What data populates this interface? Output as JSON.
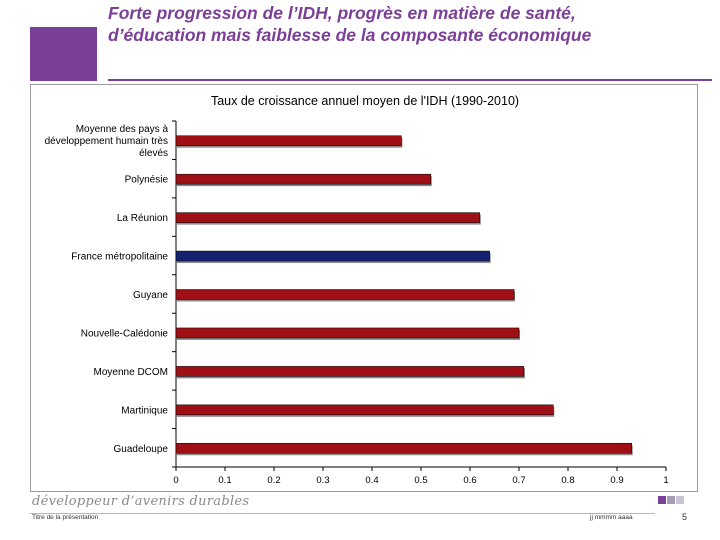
{
  "slide": {
    "title_line1": "Forte progression de l’IDH,  progrès en matière de santé,",
    "title_line2": "d’éducation mais faiblesse de la composante économique",
    "accent_color": "#7b3f98"
  },
  "chart_data": {
    "type": "bar",
    "orientation": "horizontal",
    "title": "Taux de croissance annuel moyen de l'IDH (1990-2010)",
    "categories": [
      "Moyenne des pays à développement humain très élevés",
      "Polynésie",
      "La Réunion",
      "France métropolitaine",
      "Guyane",
      "Nouvelle-Calédonie",
      "Moyenne DCOM",
      "Martinique",
      "Guadeloupe"
    ],
    "values": [
      0.46,
      0.52,
      0.62,
      0.64,
      0.69,
      0.7,
      0.71,
      0.77,
      0.93
    ],
    "bar_colors": [
      "#a00f16",
      "#a00f16",
      "#a00f16",
      "#15206e",
      "#a00f16",
      "#a00f16",
      "#a00f16",
      "#a00f16",
      "#a00f16"
    ],
    "xlim": [
      0,
      1
    ],
    "xticks": [
      "0",
      "0.1",
      "0.2",
      "0.3",
      "0.4",
      "0.5",
      "0.6",
      "0.7",
      "0.8",
      "0.9",
      "1"
    ],
    "xlabel": "",
    "ylabel": "",
    "grid": false,
    "legend": "none"
  },
  "footer": {
    "brand": "développeur d’avenirs durables",
    "presentation_title": "Titre de la présentation",
    "date": "jj mmmm aaaa",
    "page": "5",
    "square_colors": [
      "#7b3f98",
      "#a89bb8",
      "#c9c2d3"
    ]
  }
}
